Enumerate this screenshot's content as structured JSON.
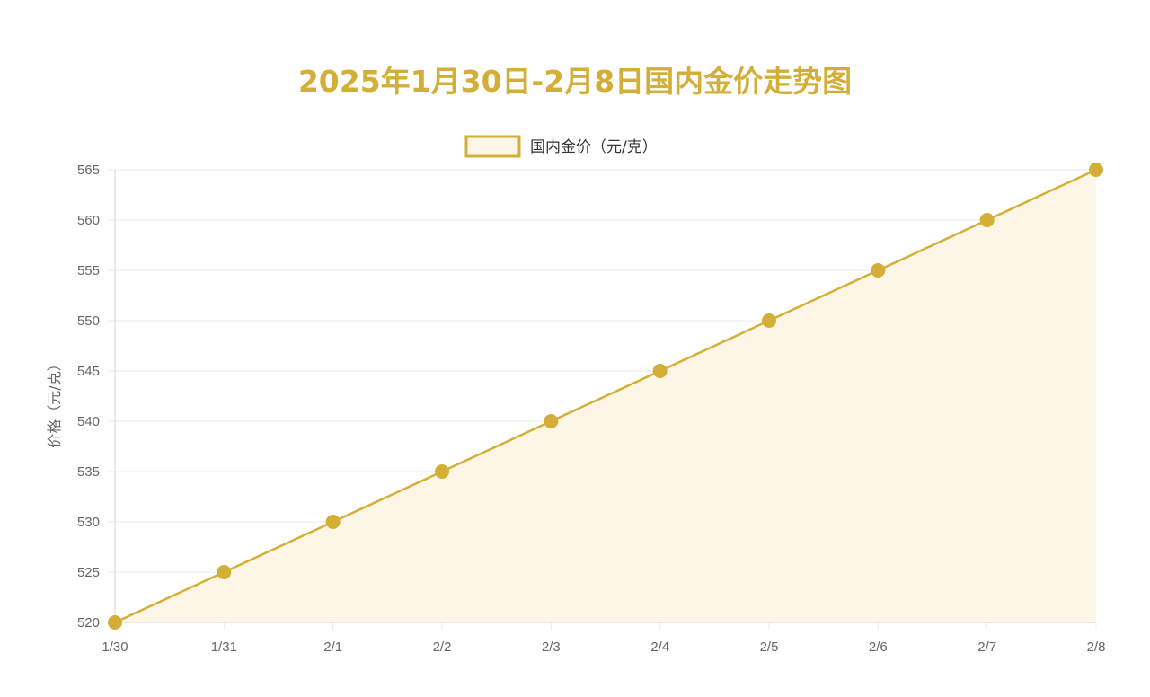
{
  "chart_data": {
    "type": "area",
    "title": "2025年1月30日-2月8日国内金价走势图",
    "categories": [
      "1/30",
      "1/31",
      "2/1",
      "2/2",
      "2/3",
      "2/4",
      "2/5",
      "2/6",
      "2/7",
      "2/8"
    ],
    "series": [
      {
        "name": "国内金价（元/克）",
        "values": [
          520,
          525,
          530,
          535,
          540,
          545,
          550,
          555,
          560,
          565
        ]
      }
    ],
    "xlabel": "",
    "ylabel": "价格（元/克）",
    "ylim": [
      520,
      565
    ],
    "yticks": [
      520,
      525,
      530,
      535,
      540,
      545,
      550,
      555,
      560,
      565
    ],
    "grid": true,
    "legend_position": "top-center",
    "colors": {
      "title": "#d4af37",
      "line": "#d4af37",
      "fill": "#fdf6e6",
      "point": "#d4af37",
      "grid": "#ebebeb",
      "axis": "#d6d6d6"
    }
  }
}
